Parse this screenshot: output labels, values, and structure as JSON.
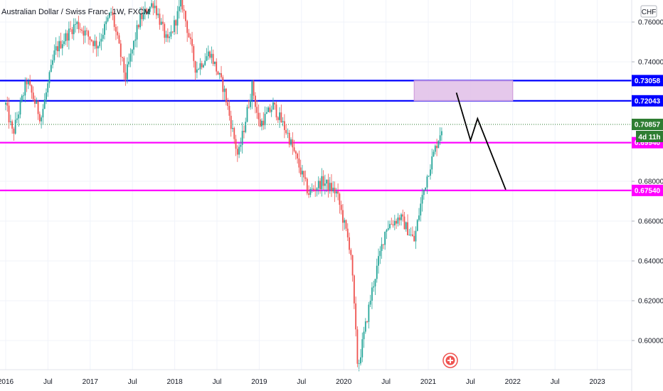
{
  "header": {
    "title": "Australian Dollar / Swiss Franc, 1W, FXCM"
  },
  "currency_badge": "CHF",
  "countdown": "4d 11h",
  "colors": {
    "up": "#26a69a",
    "down": "#ef5350",
    "blue_line": "#0000ff",
    "magenta_line": "#ff00ff",
    "zone_fill": "#e1bee7",
    "current_price": "#2e7d32"
  },
  "icons": [
    "alert-icon"
  ],
  "chart_data": {
    "type": "candlestick",
    "title": "Australian Dollar / Swiss Franc, 1W, FXCM",
    "x_ticks": [
      "2016",
      "Jul",
      "2017",
      "Jul",
      "2018",
      "Jul",
      "2019",
      "Jul",
      "2020",
      "Jul",
      "2021",
      "Jul",
      "2022",
      "Jul",
      "2023"
    ],
    "y_ticks": [
      "0.76000",
      "0.74000",
      "0.72000",
      "0.70000",
      "0.68000",
      "0.66000",
      "0.64000",
      "0.62000",
      "0.60000"
    ],
    "ylim": [
      0.584,
      0.772
    ],
    "horizontal_levels": [
      {
        "label": "0.73058",
        "value": 0.73058,
        "color": "#0000ff"
      },
      {
        "label": "0.72043",
        "value": 0.72043,
        "color": "#0000ff"
      },
      {
        "label": "0.69940",
        "value": 0.6994,
        "color": "#ff00ff"
      },
      {
        "label": "0.67540",
        "value": 0.6754,
        "color": "#ff00ff"
      }
    ],
    "current_price": {
      "label": "0.70857",
      "value": 0.70857
    },
    "zone": {
      "x_start": "2020-11",
      "x_end": "2022-01",
      "y_low": 0.7204,
      "y_high": 0.7306
    },
    "projection": [
      {
        "x": "2021-05",
        "y": 0.7245
      },
      {
        "x": "2021-07",
        "y": 0.7005
      },
      {
        "x": "2021-08",
        "y": 0.7115
      },
      {
        "x": "2021-12",
        "y": 0.6758
      }
    ],
    "anchors": [
      {
        "x": "2016-01",
        "y": 0.7185
      },
      {
        "x": "2016-02",
        "y": 0.7035
      },
      {
        "x": "2016-04",
        "y": 0.7305
      },
      {
        "x": "2016-06",
        "y": 0.7115
      },
      {
        "x": "2016-08",
        "y": 0.7455
      },
      {
        "x": "2016-11",
        "y": 0.7595
      },
      {
        "x": "2017-02",
        "y": 0.748
      },
      {
        "x": "2017-04",
        "y": 0.7655
      },
      {
        "x": "2017-06",
        "y": 0.732
      },
      {
        "x": "2017-08",
        "y": 0.761
      },
      {
        "x": "2017-10",
        "y": 0.77
      },
      {
        "x": "2017-12",
        "y": 0.749
      },
      {
        "x": "2018-02",
        "y": 0.77
      },
      {
        "x": "2018-04",
        "y": 0.736
      },
      {
        "x": "2018-06",
        "y": 0.745
      },
      {
        "x": "2018-08",
        "y": 0.726
      },
      {
        "x": "2018-10",
        "y": 0.692
      },
      {
        "x": "2018-12",
        "y": 0.728
      },
      {
        "x": "2019-01",
        "y": 0.708
      },
      {
        "x": "2019-03",
        "y": 0.718
      },
      {
        "x": "2019-05",
        "y": 0.704
      },
      {
        "x": "2019-08",
        "y": 0.674
      },
      {
        "x": "2019-10",
        "y": 0.68
      },
      {
        "x": "2019-12",
        "y": 0.674
      },
      {
        "x": "2020-02",
        "y": 0.645
      },
      {
        "x": "2020-03",
        "y": 0.586
      },
      {
        "x": "2020-05",
        "y": 0.625
      },
      {
        "x": "2020-07",
        "y": 0.657
      },
      {
        "x": "2020-09",
        "y": 0.662
      },
      {
        "x": "2020-11",
        "y": 0.65
      },
      {
        "x": "2020-12",
        "y": 0.67
      },
      {
        "x": "2021-01",
        "y": 0.685
      },
      {
        "x": "2021-03",
        "y": 0.708
      }
    ]
  }
}
